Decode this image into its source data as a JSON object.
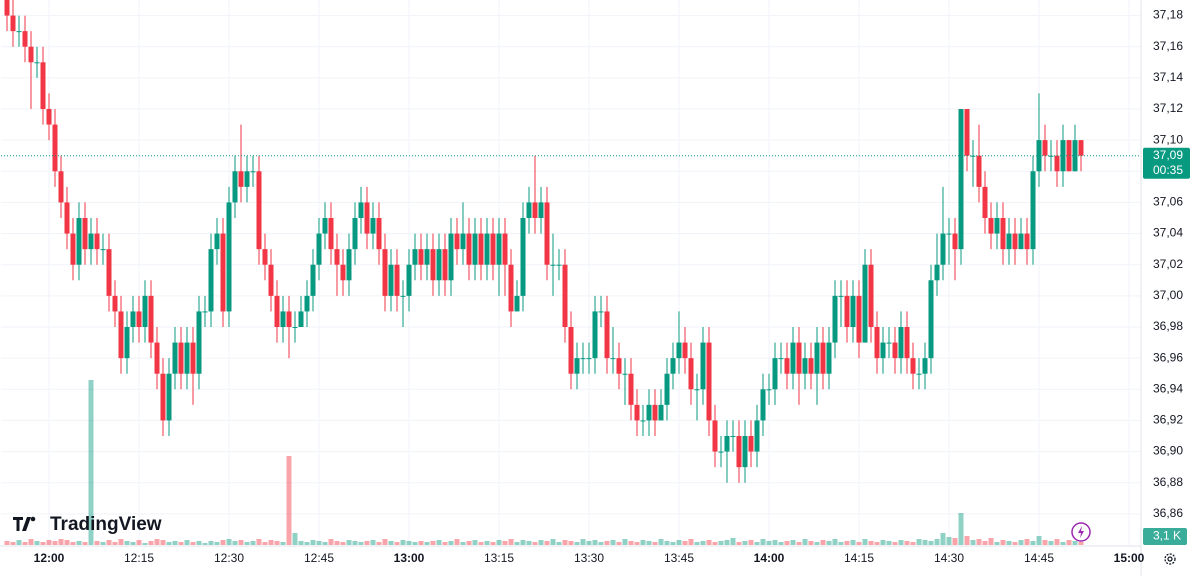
{
  "logo": "TradingView",
  "chart_data": {
    "type": "candlestick",
    "x": [
      "11:53",
      "11:54",
      "11:55",
      "11:56",
      "11:57",
      "11:58",
      "11:59",
      "12:00",
      "12:01",
      "12:02",
      "12:03",
      "12:04",
      "12:05",
      "12:06",
      "12:07",
      "12:08",
      "12:09",
      "12:10",
      "12:11",
      "12:12",
      "12:13",
      "12:14",
      "12:15",
      "12:16",
      "12:17",
      "12:18",
      "12:19",
      "12:20",
      "12:21",
      "12:22",
      "12:23",
      "12:24",
      "12:25",
      "12:26",
      "12:27",
      "12:28",
      "12:29",
      "12:30",
      "12:31",
      "12:32",
      "12:33",
      "12:34",
      "12:35",
      "12:36",
      "12:37",
      "12:38",
      "12:39",
      "12:40",
      "12:41",
      "12:42",
      "12:43",
      "12:44",
      "12:45",
      "12:46",
      "12:47",
      "12:48",
      "12:49",
      "12:50",
      "12:51",
      "12:52",
      "12:53",
      "12:54",
      "12:55",
      "12:56",
      "12:57",
      "12:58",
      "12:59",
      "13:00",
      "13:01",
      "13:02",
      "13:03",
      "13:04",
      "13:05",
      "13:06",
      "13:07",
      "13:08",
      "13:09",
      "13:10",
      "13:11",
      "13:12",
      "13:13",
      "13:14",
      "13:15",
      "13:16",
      "13:17",
      "13:18",
      "13:19",
      "13:20",
      "13:21",
      "13:22",
      "13:23",
      "13:24",
      "13:25",
      "13:26",
      "13:27",
      "13:28",
      "13:29",
      "13:30",
      "13:31",
      "13:32",
      "13:33",
      "13:34",
      "13:35",
      "13:36",
      "13:37",
      "13:38",
      "13:39",
      "13:40",
      "13:41",
      "13:42",
      "13:43",
      "13:44",
      "13:45",
      "13:46",
      "13:47",
      "13:48",
      "13:49",
      "13:50",
      "13:51",
      "13:52",
      "13:53",
      "13:54",
      "13:55",
      "13:56",
      "13:57",
      "13:58",
      "13:59",
      "14:00",
      "14:01",
      "14:02",
      "14:03",
      "14:04",
      "14:05",
      "14:06",
      "14:07",
      "14:08",
      "14:09",
      "14:10",
      "14:11",
      "14:12",
      "14:13",
      "14:14",
      "14:15",
      "14:16",
      "14:17",
      "14:18",
      "14:19",
      "14:20",
      "14:21",
      "14:22",
      "14:23",
      "14:24",
      "14:25",
      "14:26",
      "14:27",
      "14:28",
      "14:29",
      "14:30",
      "14:31",
      "14:32",
      "14:33",
      "14:34",
      "14:35",
      "14:36",
      "14:37",
      "14:38",
      "14:39",
      "14:40",
      "14:41",
      "14:42",
      "14:43",
      "14:44",
      "14:45",
      "14:46",
      "14:47",
      "14:48",
      "14:49",
      "14:50",
      "14:51",
      "14:52"
    ],
    "open": [
      37.19,
      37.18,
      37.17,
      37.17,
      37.16,
      37.15,
      37.15,
      37.12,
      37.11,
      37.08,
      37.06,
      37.04,
      37.02,
      37.05,
      37.03,
      37.04,
      37.03,
      37.03,
      37.0,
      36.99,
      36.96,
      36.98,
      36.99,
      36.98,
      37.0,
      36.97,
      36.95,
      36.92,
      36.95,
      36.97,
      36.95,
      36.97,
      36.95,
      36.99,
      36.99,
      37.03,
      37.04,
      36.99,
      37.06,
      37.08,
      37.07,
      37.08,
      37.08,
      37.03,
      37.02,
      37.0,
      36.98,
      36.99,
      36.98,
      36.98,
      36.99,
      37.0,
      37.02,
      37.04,
      37.05,
      37.03,
      37.02,
      37.01,
      37.03,
      37.05,
      37.06,
      37.04,
      37.05,
      37.03,
      37.0,
      37.02,
      37.0,
      37.0,
      37.02,
      37.03,
      37.02,
      37.03,
      37.01,
      37.03,
      37.01,
      37.04,
      37.03,
      37.04,
      37.02,
      37.04,
      37.02,
      37.04,
      37.02,
      37.04,
      37.02,
      36.99,
      37.0,
      37.05,
      37.06,
      37.05,
      37.06,
      37.02,
      37.02,
      37.02,
      36.98,
      36.95,
      36.96,
      36.96,
      36.96,
      36.99,
      36.99,
      36.96,
      36.96,
      36.95,
      36.95,
      36.93,
      36.92,
      36.92,
      36.93,
      36.92,
      36.93,
      36.95,
      36.96,
      36.97,
      36.96,
      36.94,
      36.94,
      36.97,
      36.92,
      36.9,
      36.9,
      36.91,
      36.91,
      36.89,
      36.91,
      36.9,
      36.92,
      36.94,
      36.94,
      36.96,
      36.96,
      36.95,
      36.97,
      36.95,
      36.96,
      36.95,
      36.97,
      36.95,
      36.97,
      37.0,
      37.0,
      36.98,
      37.0,
      36.97,
      37.02,
      36.98,
      36.96,
      36.97,
      36.97,
      36.96,
      36.98,
      36.96,
      36.95,
      36.95,
      36.96,
      37.01,
      37.02,
      37.04,
      37.04,
      37.03,
      37.12,
      37.09,
      37.09,
      37.07,
      37.05,
      37.04,
      37.05,
      37.03,
      37.04,
      37.03,
      37.04,
      37.03,
      37.08,
      37.1,
      37.09,
      37.09,
      37.08,
      37.1,
      37.08,
      37.1
    ],
    "high": [
      37.2,
      37.19,
      37.18,
      37.18,
      37.17,
      37.16,
      37.16,
      37.13,
      37.12,
      37.09,
      37.07,
      37.05,
      37.06,
      37.06,
      37.05,
      37.05,
      37.04,
      37.04,
      37.01,
      37.0,
      36.99,
      37.0,
      37.0,
      37.01,
      37.01,
      36.98,
      36.96,
      36.96,
      36.98,
      36.98,
      36.98,
      36.98,
      37.0,
      37.0,
      37.04,
      37.05,
      37.05,
      37.07,
      37.09,
      37.11,
      37.09,
      37.09,
      37.09,
      37.04,
      37.03,
      37.01,
      37.0,
      37.0,
      36.99,
      37.0,
      37.01,
      37.03,
      37.05,
      37.06,
      37.06,
      37.04,
      37.03,
      37.04,
      37.06,
      37.07,
      37.07,
      37.06,
      37.06,
      37.04,
      37.03,
      37.03,
      37.01,
      37.03,
      37.04,
      37.04,
      37.04,
      37.04,
      37.04,
      37.04,
      37.05,
      37.05,
      37.06,
      37.05,
      37.05,
      37.05,
      37.05,
      37.05,
      37.05,
      37.05,
      37.03,
      37.01,
      37.06,
      37.07,
      37.09,
      37.07,
      37.07,
      37.04,
      37.03,
      37.03,
      36.99,
      36.97,
      36.97,
      36.97,
      37.0,
      37.0,
      37.0,
      36.98,
      36.97,
      36.96,
      36.96,
      36.94,
      36.93,
      36.94,
      36.94,
      36.94,
      36.96,
      36.97,
      36.99,
      36.98,
      36.97,
      36.95,
      36.98,
      36.98,
      36.93,
      36.91,
      36.92,
      36.92,
      36.92,
      36.92,
      36.92,
      36.93,
      36.95,
      36.95,
      36.97,
      36.97,
      36.97,
      36.98,
      36.98,
      36.97,
      36.97,
      36.98,
      36.98,
      36.98,
      37.01,
      37.01,
      37.01,
      37.01,
      37.01,
      37.03,
      37.03,
      36.99,
      36.98,
      36.98,
      36.98,
      36.99,
      36.99,
      36.97,
      36.96,
      36.97,
      37.02,
      37.04,
      37.07,
      37.05,
      37.05,
      37.12,
      37.12,
      37.1,
      37.11,
      37.08,
      37.06,
      37.06,
      37.06,
      37.05,
      37.05,
      37.05,
      37.05,
      37.09,
      37.13,
      37.11,
      37.1,
      37.1,
      37.11,
      37.1,
      37.11,
      37.1
    ],
    "low": [
      37.17,
      37.16,
      37.16,
      37.15,
      37.12,
      37.14,
      37.11,
      37.1,
      37.07,
      37.05,
      37.03,
      37.01,
      37.01,
      37.02,
      37.02,
      37.02,
      37.02,
      36.99,
      36.98,
      36.95,
      36.95,
      36.97,
      36.97,
      36.97,
      36.96,
      36.94,
      36.91,
      36.91,
      36.94,
      36.94,
      36.94,
      36.93,
      36.94,
      36.98,
      36.98,
      37.02,
      36.98,
      36.98,
      37.05,
      37.06,
      37.06,
      37.07,
      37.02,
      37.01,
      36.99,
      36.97,
      36.97,
      36.96,
      36.97,
      36.98,
      36.98,
      36.99,
      37.01,
      37.03,
      37.02,
      37.0,
      37.0,
      37.0,
      37.02,
      37.04,
      37.03,
      37.03,
      37.02,
      36.99,
      36.99,
      36.99,
      36.98,
      36.99,
      37.01,
      37.01,
      37.01,
      37.0,
      37.0,
      37.0,
      37.0,
      37.02,
      37.02,
      37.01,
      37.01,
      37.01,
      37.01,
      37.01,
      37.0,
      37.0,
      36.98,
      36.99,
      36.99,
      37.04,
      37.04,
      37.04,
      37.01,
      37.0,
      37.01,
      36.97,
      36.94,
      36.94,
      36.95,
      36.95,
      36.95,
      36.98,
      36.95,
      36.95,
      36.94,
      36.93,
      36.92,
      36.91,
      36.91,
      36.91,
      36.91,
      36.92,
      36.92,
      36.94,
      36.95,
      36.95,
      36.93,
      36.92,
      36.93,
      36.91,
      36.89,
      36.89,
      36.88,
      36.9,
      36.88,
      36.88,
      36.89,
      36.89,
      36.91,
      36.93,
      36.93,
      36.95,
      36.94,
      36.94,
      36.93,
      36.94,
      36.94,
      36.93,
      36.94,
      36.94,
      36.96,
      36.98,
      36.97,
      36.97,
      36.96,
      36.97,
      36.97,
      36.95,
      36.95,
      36.96,
      36.95,
      36.95,
      36.95,
      36.94,
      36.94,
      36.94,
      36.95,
      37.0,
      37.01,
      37.02,
      37.01,
      37.02,
      37.08,
      37.07,
      37.06,
      37.04,
      37.03,
      37.03,
      37.02,
      37.02,
      37.02,
      37.03,
      37.02,
      37.02,
      37.07,
      37.08,
      37.08,
      37.07,
      37.07,
      37.08,
      37.08,
      37.08
    ],
    "close": [
      37.18,
      37.17,
      37.17,
      37.16,
      37.15,
      37.15,
      37.12,
      37.11,
      37.08,
      37.06,
      37.04,
      37.02,
      37.05,
      37.03,
      37.04,
      37.03,
      37.03,
      37.0,
      36.99,
      36.96,
      36.98,
      36.99,
      36.98,
      37.0,
      36.97,
      36.95,
      36.92,
      36.95,
      36.97,
      36.95,
      36.97,
      36.95,
      36.99,
      36.99,
      37.03,
      37.04,
      36.99,
      37.06,
      37.08,
      37.07,
      37.08,
      37.08,
      37.03,
      37.02,
      37.0,
      36.98,
      36.99,
      36.98,
      36.98,
      36.99,
      37.0,
      37.02,
      37.04,
      37.05,
      37.03,
      37.02,
      37.01,
      37.03,
      37.05,
      37.06,
      37.04,
      37.05,
      37.03,
      37.0,
      37.02,
      37.0,
      37.0,
      37.02,
      37.03,
      37.02,
      37.03,
      37.01,
      37.03,
      37.01,
      37.04,
      37.03,
      37.04,
      37.02,
      37.04,
      37.02,
      37.04,
      37.02,
      37.04,
      37.02,
      36.99,
      37.0,
      37.05,
      37.06,
      37.05,
      37.06,
      37.02,
      37.02,
      37.02,
      36.98,
      36.95,
      36.96,
      36.96,
      36.96,
      36.99,
      36.99,
      36.96,
      36.96,
      36.95,
      36.95,
      36.93,
      36.92,
      36.92,
      36.93,
      36.92,
      36.93,
      36.95,
      36.96,
      36.97,
      36.96,
      36.94,
      36.94,
      36.97,
      36.92,
      36.9,
      36.9,
      36.91,
      36.91,
      36.89,
      36.91,
      36.9,
      36.92,
      36.94,
      36.94,
      36.96,
      36.96,
      36.95,
      36.97,
      36.95,
      36.96,
      36.95,
      36.97,
      36.95,
      36.97,
      37.0,
      37.0,
      36.98,
      37.0,
      36.97,
      37.02,
      36.98,
      36.96,
      36.97,
      36.97,
      36.96,
      36.98,
      36.96,
      36.95,
      36.95,
      36.96,
      37.01,
      37.02,
      37.04,
      37.04,
      37.03,
      37.12,
      37.09,
      37.09,
      37.07,
      37.05,
      37.04,
      37.05,
      37.03,
      37.04,
      37.03,
      37.04,
      37.03,
      37.08,
      37.1,
      37.09,
      37.09,
      37.08,
      37.1,
      37.08,
      37.1,
      37.09
    ],
    "volume": [
      4,
      3,
      5,
      3,
      6,
      4,
      3,
      5,
      4,
      6,
      5,
      3,
      4,
      3,
      165,
      4,
      3,
      5,
      3,
      6,
      4,
      3,
      5,
      2,
      4,
      6,
      5,
      3,
      4,
      3,
      5,
      3,
      4,
      2,
      4,
      3,
      5,
      6,
      4,
      5,
      3,
      4,
      6,
      3,
      5,
      4,
      3,
      89,
      12,
      4,
      3,
      5,
      4,
      3,
      6,
      4,
      3,
      5,
      4,
      3,
      4,
      5,
      3,
      6,
      4,
      3,
      5,
      4,
      3,
      4,
      3,
      4,
      5,
      3,
      4,
      6,
      3,
      4,
      5,
      3,
      4,
      3,
      5,
      4,
      6,
      3,
      5,
      4,
      3,
      5,
      4,
      6,
      3,
      5,
      4,
      3,
      6,
      4,
      5,
      3,
      4,
      5,
      3,
      6,
      4,
      3,
      5,
      4,
      3,
      6,
      4,
      3,
      5,
      4,
      6,
      3,
      4,
      5,
      3,
      4,
      5,
      7,
      3,
      4,
      5,
      3,
      6,
      4,
      5,
      3,
      4,
      5,
      3,
      6,
      4,
      3,
      5,
      4,
      6,
      3,
      4,
      5,
      3,
      6,
      4,
      3,
      5,
      4,
      3,
      5,
      4,
      3,
      6,
      5,
      4,
      6,
      12,
      8,
      7,
      32,
      9,
      5,
      6,
      4,
      7,
      3,
      5,
      4,
      3,
      5,
      6,
      4,
      9,
      5,
      4,
      6,
      3,
      5,
      4,
      3.1
    ],
    "up_color": "#089981",
    "down_color": "#f23645",
    "xlim": [
      "11:52",
      "15:02"
    ],
    "xticks": [
      "12:00",
      "12:15",
      "12:30",
      "12:45",
      "13:00",
      "13:15",
      "13:30",
      "13:45",
      "14:00",
      "14:15",
      "14:30",
      "14:45",
      "15:00"
    ],
    "ylim": [
      36.84,
      37.19
    ],
    "yticks": [
      {
        "value": 36.86,
        "label": "36,86"
      },
      {
        "value": 36.88,
        "label": "36,88"
      },
      {
        "value": 36.9,
        "label": "36,90"
      },
      {
        "value": 36.92,
        "label": "36,92"
      },
      {
        "value": 36.94,
        "label": "36,94"
      },
      {
        "value": 36.96,
        "label": "36,96"
      },
      {
        "value": 36.98,
        "label": "36,98"
      },
      {
        "value": 37.0,
        "label": "37,00"
      },
      {
        "value": 37.02,
        "label": "37,02"
      },
      {
        "value": 37.04,
        "label": "37,04"
      },
      {
        "value": 37.06,
        "label": "37,06"
      },
      {
        "value": 37.08,
        "label": "37,08"
      },
      {
        "value": 37.1,
        "label": "37,10"
      },
      {
        "value": 37.12,
        "label": "37,12"
      },
      {
        "value": 37.14,
        "label": "37,14"
      },
      {
        "value": 37.16,
        "label": "37,16"
      },
      {
        "value": 37.18,
        "label": "37,18"
      }
    ],
    "grid": true,
    "last_price": {
      "value": 37.09,
      "label": "37,09"
    },
    "countdown": "00:35",
    "last_volume": {
      "value": 3.1,
      "label": "3,1 K"
    }
  }
}
